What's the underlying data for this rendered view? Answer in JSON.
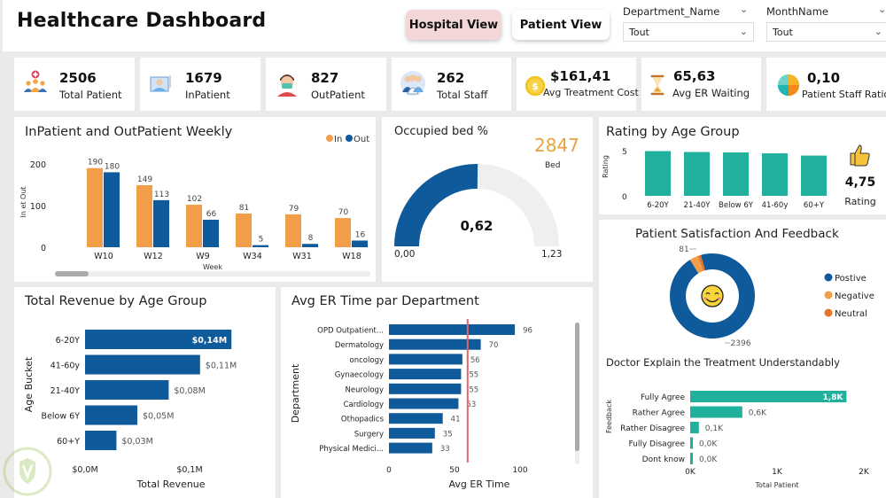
{
  "header": {
    "title": "Healthcare Dashboard",
    "buttons": [
      {
        "label": "Hospital View",
        "active": true
      },
      {
        "label": "Patient View",
        "active": false
      }
    ],
    "slicers": [
      {
        "label": "Department_Name",
        "value": "Tout"
      },
      {
        "label": "MonthName",
        "value": "Tout"
      }
    ]
  },
  "kpis": [
    {
      "value": "2506",
      "label": "Total Patient",
      "icon": "patients-group-icon"
    },
    {
      "value": "1679",
      "label": "InPatient",
      "icon": "patient-bed-icon"
    },
    {
      "value": "827",
      "label": "OutPatient",
      "icon": "masked-patient-icon"
    },
    {
      "value": "262",
      "label": "Total Staff",
      "icon": "medical-staff-icon"
    },
    {
      "value": "$161,41",
      "label": "Avg Treatment Cost",
      "icon": "dollar-coin-icon"
    },
    {
      "value": "65,63",
      "label": "Avg ER Waiting",
      "icon": "hourglass-icon"
    },
    {
      "value": "0,10",
      "label": "Patient Staff Ratio",
      "icon": "pie-chart-icon"
    }
  ],
  "colors": {
    "orange": "#f29d48",
    "blue": "#0f5a9a",
    "teal": "#20b09c",
    "gauge_track": "#efefef",
    "bed_count": "#e8a33d",
    "ref_line": "#e8626a",
    "neutral": "#e8732a"
  },
  "chart_data": [
    {
      "id": "weekly",
      "type": "bar",
      "title": "InPatient and OutPatient Weekly",
      "xlabel": "Week",
      "ylabel": "In et Out",
      "categories": [
        "W10",
        "W12",
        "W9",
        "W34",
        "W31",
        "W18"
      ],
      "series": [
        {
          "name": "In",
          "values": [
            190,
            149,
            102,
            81,
            79,
            70
          ]
        },
        {
          "name": "Out",
          "values": [
            180,
            113,
            66,
            5,
            8,
            16
          ]
        }
      ],
      "yticks": [
        "0",
        "100",
        "200"
      ],
      "ylim": [
        0,
        200
      ],
      "legend": "top-right"
    },
    {
      "id": "gauge",
      "type": "gauge",
      "title": "Occupied bed %",
      "value": 0.62,
      "value_label": "0,62",
      "min_label": "0,00",
      "max_label": "1,23",
      "min": 0,
      "max": 1.23,
      "side_value": "2847",
      "side_label": "Bed"
    },
    {
      "id": "rating",
      "type": "bar",
      "title": "Rating by Age Group",
      "ylabel": "Rating",
      "categories": [
        "6-20Y",
        "21-40Y",
        "Below 6Y",
        "41-60y",
        "60+Y"
      ],
      "values": [
        4.95,
        4.85,
        4.8,
        4.7,
        4.45
      ],
      "yticks": [
        "0",
        "5"
      ],
      "ylim": [
        0,
        5
      ],
      "card_value": "4,75",
      "card_label": "Rating"
    },
    {
      "id": "satisfaction",
      "type": "pie",
      "title": "Patient Satisfaction And Feedback",
      "labels": [
        "Postive",
        "Negative",
        "Neutral"
      ],
      "values": [
        2396,
        81,
        29
      ],
      "data_labels": [
        "2396",
        "81",
        ""
      ],
      "legend": "right"
    },
    {
      "id": "doctor",
      "type": "bar",
      "orientation": "horizontal",
      "title": "Doctor Explain the Treatment Understandably",
      "xlabel": "Total Patient",
      "ylabel": "Feedback",
      "categories": [
        "Fully Agree",
        "Rather Agree",
        "Rather Disagree",
        "Fully Disagree",
        "Dont know"
      ],
      "values": [
        1800,
        600,
        100,
        20,
        20
      ],
      "data_labels": [
        "1,8K",
        "0,6K",
        "0,1K",
        "0,0K",
        "0,0K"
      ],
      "xticks": [
        "0K",
        "1K",
        "2K"
      ],
      "xlim": [
        0,
        2000
      ]
    },
    {
      "id": "revenue",
      "type": "bar",
      "orientation": "horizontal",
      "title": "Total Revenue by Age Group",
      "xlabel": "Total Revenue",
      "ylabel": "Age Bucket",
      "categories": [
        "6-20Y",
        "41-60y",
        "21-40Y",
        "Below 6Y",
        "60+Y"
      ],
      "values": [
        0.14,
        0.11,
        0.08,
        0.05,
        0.03
      ],
      "data_labels": [
        "$0,14M",
        "$0,11M",
        "$0,08M",
        "$0,05M",
        "$0,03M"
      ],
      "xticks": [
        "$0,0M",
        "$0,1M"
      ],
      "xlim": [
        0,
        0.1
      ]
    },
    {
      "id": "er",
      "type": "bar",
      "orientation": "horizontal",
      "title": "Avg ER Time par Department",
      "xlabel": "Avg ER Time",
      "ylabel": "Department",
      "categories": [
        "OPD Outpatient...",
        "Dermatology",
        "oncology",
        "Gynaecology",
        "Neurology",
        "Cardiology",
        "Othopadics",
        "Surgery",
        "Physical Medici..."
      ],
      "values": [
        96,
        70,
        56,
        55,
        55,
        53,
        41,
        35,
        33
      ],
      "xticks": [
        "0",
        "50",
        "100"
      ],
      "xlim": [
        0,
        100
      ],
      "reference_line": 60
    }
  ]
}
